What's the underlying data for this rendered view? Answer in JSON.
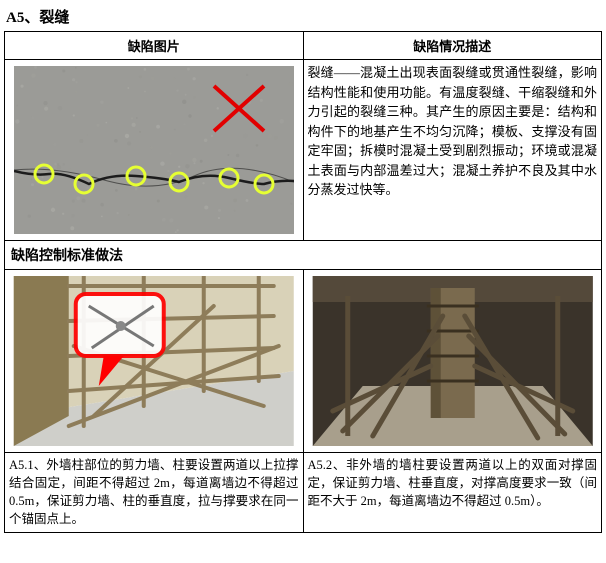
{
  "title": "A5、裂缝",
  "header": {
    "image_col": "缺陷图片",
    "desc_col": "缺陷情况描述"
  },
  "description": "裂缝——混凝土出现表面裂缝或贯通性裂缝，影响结构性能和使用功能。有温度裂缝、干缩裂缝和外力引起的裂缝三种。其产生的原因主要是：结构和构件下的地基产生不均匀沉降；模板、支撑没有固定牢固；拆模时混凝土受到剧烈振动；环境或混凝土表面与内部温差过大；混凝土养护不良及其中水分蒸发过快等。",
  "control_label": "缺陷控制标准做法",
  "captions": {
    "left": "A5.1、外墙柱部位的剪力墙、柱要设置两道以上拉撑结合固定，间距不得超过 2m，每道离墙边不得超过 0.5m，保证剪力墙、柱的垂直度，拉与撑要求在同一个锚固点上。",
    "right": "A5.2、非外墙的墙柱要设置两道以上的双面对撑固定，保证剪力墙、柱垂直度，对撑高度要求一致（间距不大于 2m，每道离墙边不得超过 0.5m）。"
  },
  "crack_image": {
    "bg": "#9b9b97",
    "crack_color": "#1c1c1c",
    "circle_stroke": "#e6ff33",
    "x_color": "#e10000",
    "circles": [
      [
        30,
        108
      ],
      [
        70,
        118
      ],
      [
        122,
        110
      ],
      [
        165,
        116
      ],
      [
        215,
        112
      ],
      [
        250,
        118
      ]
    ]
  },
  "scaffold_left": {
    "floor": "#cfcfca",
    "wall_light": "#d9d2b8",
    "wall_dark": "#8a7a52",
    "pipe": "#8e7d5a",
    "highlight_stroke": "#ff0000",
    "highlight_fill": "#ffffff"
  },
  "scaffold_right": {
    "bg_dark": "#3a332a",
    "floor": "#a89f8c",
    "column": "#7a6a4e",
    "pipe": "#5a4d38"
  }
}
